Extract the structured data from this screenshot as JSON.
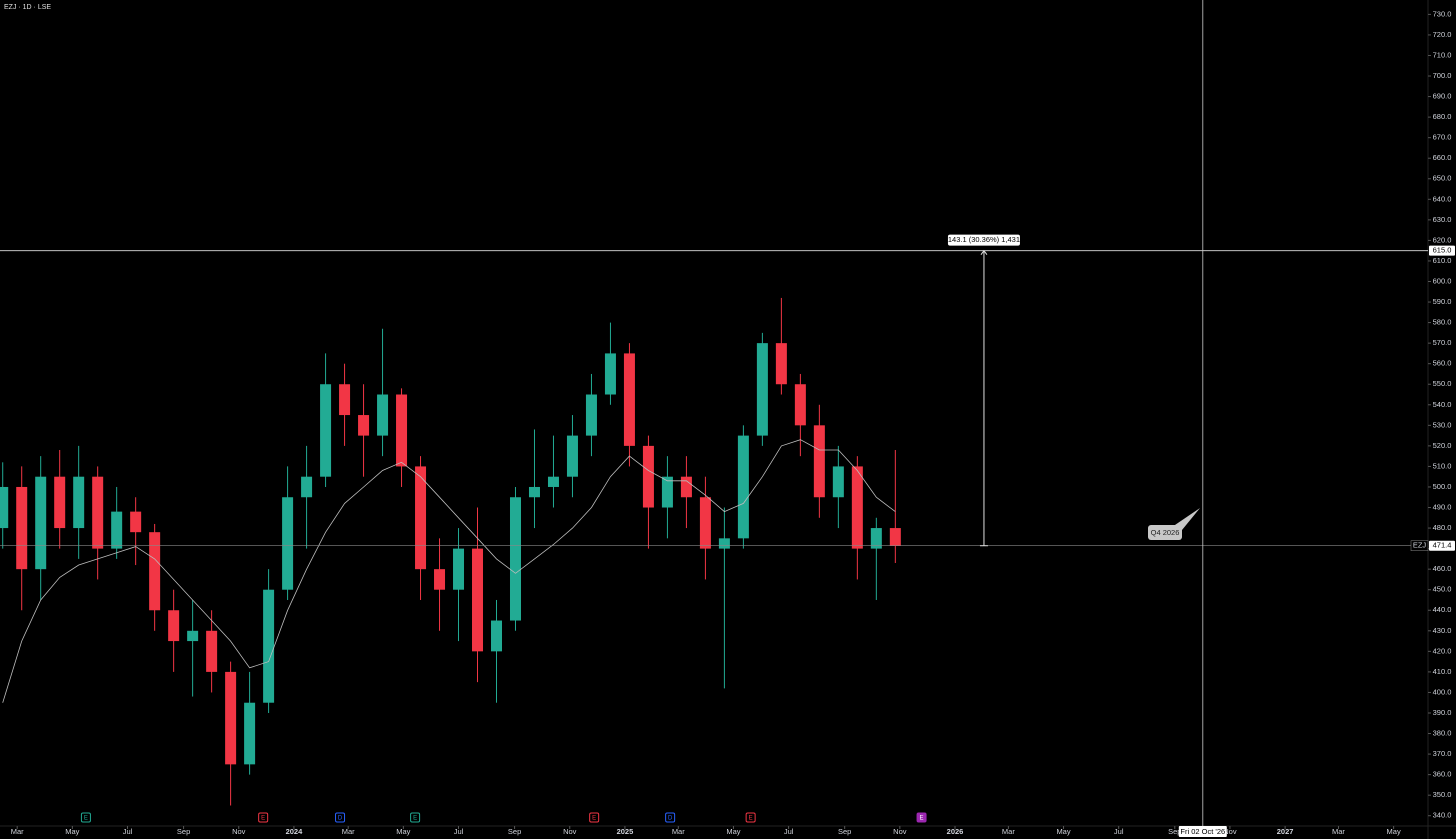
{
  "chart_data": {
    "type": "candlestick",
    "title": "EZJ · 1D · LSE",
    "symbol": "EZJ",
    "up_color": "#22ab94",
    "down_color": "#f23645",
    "ma_color": "#bdbdbd",
    "x": [
      "2023-02-13",
      "2023-03-06",
      "2023-03-27",
      "2023-04-17",
      "2023-05-08",
      "2023-05-29",
      "2023-06-19",
      "2023-07-10",
      "2023-07-31",
      "2023-08-21",
      "2023-09-11",
      "2023-10-02",
      "2023-10-23",
      "2023-11-13",
      "2023-12-04",
      "2023-12-25",
      "2024-01-15",
      "2024-02-05",
      "2024-02-26",
      "2024-03-18",
      "2024-04-08",
      "2024-04-29",
      "2024-05-20",
      "2024-06-10",
      "2024-07-01",
      "2024-07-22",
      "2024-08-12",
      "2024-09-02",
      "2024-09-23",
      "2024-10-14",
      "2024-11-04",
      "2024-11-25",
      "2024-12-16",
      "2025-01-06",
      "2025-01-27",
      "2025-02-17",
      "2025-03-10",
      "2025-03-31",
      "2025-04-21",
      "2025-05-12",
      "2025-06-02",
      "2025-06-23",
      "2025-07-14",
      "2025-08-04",
      "2025-08-25",
      "2025-09-15",
      "2025-10-06",
      "2025-10-27"
    ],
    "open": [
      480,
      500,
      460,
      505,
      480,
      505,
      470,
      488,
      478,
      440,
      425,
      430,
      410,
      365,
      395,
      450,
      495,
      505,
      550,
      535,
      525,
      545,
      510,
      460,
      450,
      470,
      420,
      435,
      495,
      500,
      505,
      525,
      545,
      565,
      520,
      490,
      505,
      495,
      470,
      475,
      525,
      570,
      550,
      530,
      495,
      510,
      470,
      480
    ],
    "high": [
      512,
      510,
      515,
      518,
      520,
      510,
      500,
      495,
      482,
      450,
      445,
      440,
      415,
      410,
      460,
      510,
      520,
      565,
      560,
      550,
      577,
      548,
      515,
      475,
      480,
      490,
      445,
      500,
      528,
      525,
      535,
      555,
      580,
      570,
      525,
      515,
      515,
      505,
      490,
      530,
      575,
      592,
      555,
      540,
      520,
      515,
      485,
      518
    ],
    "low": [
      470,
      440,
      445,
      470,
      465,
      455,
      465,
      462,
      430,
      410,
      398,
      400,
      345,
      360,
      390,
      445,
      470,
      500,
      520,
      505,
      515,
      500,
      445,
      430,
      425,
      405,
      395,
      430,
      480,
      490,
      495,
      515,
      540,
      510,
      470,
      475,
      480,
      455,
      402,
      470,
      520,
      545,
      515,
      485,
      480,
      455,
      445,
      463
    ],
    "close": [
      500,
      460,
      505,
      480,
      505,
      470,
      488,
      478,
      440,
      425,
      430,
      410,
      365,
      395,
      450,
      495,
      505,
      550,
      535,
      525,
      545,
      510,
      460,
      450,
      470,
      420,
      435,
      495,
      500,
      505,
      525,
      545,
      565,
      520,
      490,
      505,
      495,
      470,
      475,
      525,
      570,
      550,
      530,
      495,
      510,
      470,
      480,
      471.4
    ],
    "ma": [
      395,
      425,
      445,
      456,
      462,
      465,
      468,
      471,
      465,
      455,
      445,
      435,
      425,
      412,
      415,
      440,
      460,
      478,
      492,
      500,
      508,
      512,
      505,
      495,
      485,
      475,
      465,
      458,
      465,
      472,
      480,
      490,
      505,
      515,
      508,
      503,
      503,
      496,
      488,
      492,
      505,
      520,
      523,
      518,
      518,
      508,
      495,
      488
    ],
    "xlim": [
      "2023-02-10",
      "2027-06-08"
    ],
    "ylim": [
      335,
      737
    ],
    "xticks": [
      {
        "value": "2023-03-01",
        "label": "Mar"
      },
      {
        "value": "2023-05-01",
        "label": "May"
      },
      {
        "value": "2023-07-01",
        "label": "Jul"
      },
      {
        "value": "2023-09-01",
        "label": "Sep"
      },
      {
        "value": "2023-11-01",
        "label": "Nov"
      },
      {
        "value": "2024-01-01",
        "label": "2024"
      },
      {
        "value": "2024-03-01",
        "label": "Mar"
      },
      {
        "value": "2024-05-01",
        "label": "May"
      },
      {
        "value": "2024-07-01",
        "label": "Jul"
      },
      {
        "value": "2024-09-01",
        "label": "Sep"
      },
      {
        "value": "2024-11-01",
        "label": "Nov"
      },
      {
        "value": "2025-01-01",
        "label": "2025"
      },
      {
        "value": "2025-03-01",
        "label": "Mar"
      },
      {
        "value": "2025-05-01",
        "label": "May"
      },
      {
        "value": "2025-07-01",
        "label": "Jul"
      },
      {
        "value": "2025-09-01",
        "label": "Sep"
      },
      {
        "value": "2025-11-01",
        "label": "Nov"
      },
      {
        "value": "2026-01-01",
        "label": "2026"
      },
      {
        "value": "2026-03-01",
        "label": "Mar"
      },
      {
        "value": "2026-05-01",
        "label": "May"
      },
      {
        "value": "2026-07-01",
        "label": "Jul"
      },
      {
        "value": "2026-09-01",
        "label": "Sep"
      },
      {
        "value": "2026-11-01",
        "label": "Nov"
      },
      {
        "value": "2027-01-01",
        "label": "2027"
      },
      {
        "value": "2027-03-01",
        "label": "Mar"
      },
      {
        "value": "2027-05-01",
        "label": "May"
      }
    ],
    "yticks": [
      {
        "value": 340,
        "label": "340.0"
      },
      {
        "value": 350,
        "label": "350.0"
      },
      {
        "value": 360,
        "label": "360.0"
      },
      {
        "value": 370,
        "label": "370.0"
      },
      {
        "value": 380,
        "label": "380.0"
      },
      {
        "value": 390,
        "label": "390.0"
      },
      {
        "value": 400,
        "label": "400.0"
      },
      {
        "value": 410,
        "label": "410.0"
      },
      {
        "value": 420,
        "label": "420.0"
      },
      {
        "value": 430,
        "label": "430.0"
      },
      {
        "value": 440,
        "label": "440.0"
      },
      {
        "value": 450,
        "label": "450.0"
      },
      {
        "value": 460,
        "label": "460.0"
      },
      {
        "value": 470,
        "label": "470.0"
      },
      {
        "value": 480,
        "label": "480.0"
      },
      {
        "value": 490,
        "label": "490.0"
      },
      {
        "value": 500,
        "label": "500.0"
      },
      {
        "value": 510,
        "label": "510.0"
      },
      {
        "value": 520,
        "label": "520.0"
      },
      {
        "value": 530,
        "label": "530.0"
      },
      {
        "value": 540,
        "label": "540.0"
      },
      {
        "value": 550,
        "label": "550.0"
      },
      {
        "value": 560,
        "label": "560.0"
      },
      {
        "value": 570,
        "label": "570.0"
      },
      {
        "value": 580,
        "label": "580.0"
      },
      {
        "value": 590,
        "label": "590.0"
      },
      {
        "value": 600,
        "label": "600.0"
      },
      {
        "value": 610,
        "label": "610.0"
      },
      {
        "value": 620,
        "label": "620.0"
      },
      {
        "value": 630,
        "label": "630.0"
      },
      {
        "value": 640,
        "label": "640.0"
      },
      {
        "value": 650,
        "label": "650.0"
      },
      {
        "value": 660,
        "label": "660.0"
      },
      {
        "value": 670,
        "label": "670.0"
      },
      {
        "value": 680,
        "label": "680.0"
      },
      {
        "value": 690,
        "label": "690.0"
      },
      {
        "value": 700,
        "label": "700.0"
      },
      {
        "value": 710,
        "label": "710.0"
      },
      {
        "value": 720,
        "label": "720.0"
      },
      {
        "value": 730,
        "label": "730.0"
      }
    ],
    "hline": {
      "value": 615,
      "label": "615.0"
    },
    "measure": {
      "x": "2026-02-02",
      "label": "143.1 (30.36%) 1,431"
    },
    "crosshair": {
      "x": "2026-10-02",
      "label": "Fri 02 Oct '26"
    },
    "tooltip": "Q4 2026",
    "events": [
      {
        "x": "2023-05-16",
        "label": "E",
        "color": "#22ab94"
      },
      {
        "x": "2023-11-28",
        "label": "E",
        "color": "#f23645"
      },
      {
        "x": "2024-02-21",
        "label": "D",
        "color": "#2962ff"
      },
      {
        "x": "2024-05-14",
        "label": "E",
        "color": "#22ab94"
      },
      {
        "x": "2024-11-28",
        "label": "E",
        "color": "#f23645"
      },
      {
        "x": "2025-02-20",
        "label": "D",
        "color": "#2962ff"
      },
      {
        "x": "2025-05-20",
        "label": "E",
        "color": "#f23645"
      },
      {
        "x": "2025-11-25",
        "label": "E",
        "color": "#9c27b0"
      }
    ]
  }
}
